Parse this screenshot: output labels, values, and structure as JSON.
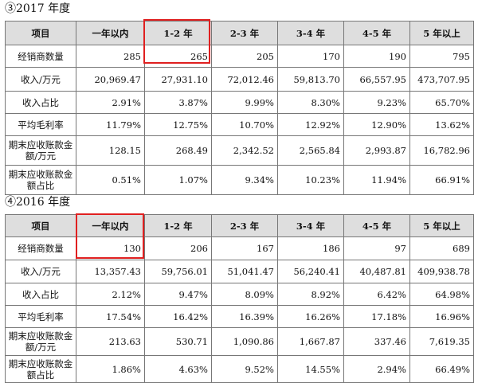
{
  "section_2017": {
    "title": "③2017 年度",
    "headers": [
      "项目",
      "一年以内",
      "1-2 年",
      "2-3 年",
      "3-4 年",
      "4-5 年",
      "5 年以上"
    ],
    "rows": [
      {
        "label": "经销商数量",
        "values": [
          "285",
          "265",
          "205",
          "170",
          "190",
          "795"
        ]
      },
      {
        "label": "收入/万元",
        "values": [
          "20,969.47",
          "27,931.10",
          "72,012.46",
          "59,813.70",
          "66,557.95",
          "473,707.95"
        ]
      },
      {
        "label": "收入占比",
        "values": [
          "2.91%",
          "3.87%",
          "9.99%",
          "8.30%",
          "9.23%",
          "65.70%"
        ]
      },
      {
        "label": "平均毛利率",
        "values": [
          "11.79%",
          "12.75%",
          "10.70%",
          "12.92%",
          "12.90%",
          "13.62%"
        ]
      },
      {
        "label": "期末应收账款金额/万元",
        "values": [
          "128.15",
          "268.49",
          "2,342.52",
          "2,565.84",
          "2,993.87",
          "16,782.96"
        ]
      },
      {
        "label": "期末应收账款金额占比",
        "values": [
          "0.51%",
          "1.07%",
          "9.34%",
          "10.23%",
          "11.94%",
          "66.91%"
        ]
      }
    ],
    "highlight_color": "#e02020"
  },
  "section_2016": {
    "title": "④2016 年度",
    "headers": [
      "项目",
      "一年以内",
      "1-2 年",
      "2-3 年",
      "3-4 年",
      "4-5 年",
      "5 年以上"
    ],
    "rows": [
      {
        "label": "经销商数量",
        "values": [
          "130",
          "206",
          "167",
          "186",
          "97",
          "689"
        ]
      },
      {
        "label": "收入/万元",
        "values": [
          "13,357.43",
          "59,756.01",
          "51,041.47",
          "56,240.41",
          "40,487.81",
          "409,938.78"
        ]
      },
      {
        "label": "收入占比",
        "values": [
          "2.12%",
          "9.47%",
          "8.09%",
          "8.92%",
          "6.42%",
          "64.98%"
        ]
      },
      {
        "label": "平均毛利率",
        "values": [
          "17.54%",
          "16.42%",
          "16.39%",
          "16.26%",
          "17.18%",
          "16.96%"
        ]
      },
      {
        "label": "期末应收账款金额/万元",
        "values": [
          "213.63",
          "530.71",
          "1,090.86",
          "1,667.87",
          "337.46",
          "7,619.35"
        ]
      },
      {
        "label": "期末应收账款金额占比",
        "values": [
          "1.86%",
          "4.63%",
          "9.52%",
          "14.55%",
          "2.94%",
          "66.49%"
        ]
      }
    ],
    "highlight_color": "#e02020"
  }
}
